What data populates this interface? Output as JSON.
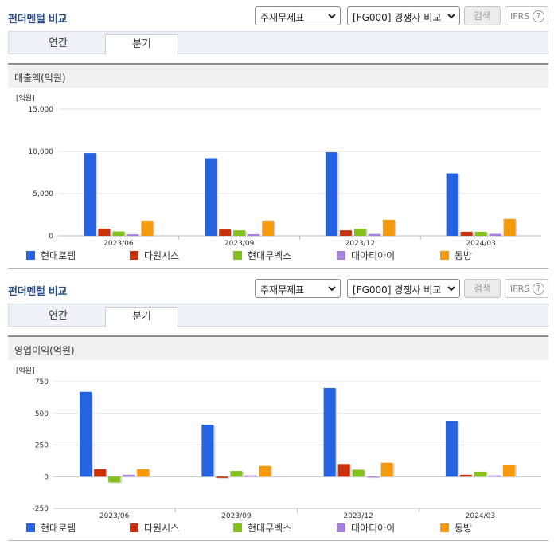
{
  "header": {
    "title": "펀더멘털 비교",
    "select_statement": "주재무제표",
    "select_compare": "[FG000] 경쟁사 비교",
    "search_label": "검색",
    "ifrs_label": "IFRS",
    "help_glyph": "?"
  },
  "tabs": {
    "annual": "연간",
    "quarter": "분기",
    "active": "분기"
  },
  "colors": {
    "title": "#2b4f8a",
    "series": [
      "#2563e0",
      "#c8330e",
      "#84c11f",
      "#a77fdc",
      "#f59a0c"
    ]
  },
  "charts": [
    {
      "metric": "매출액(억원)",
      "chart_data": {
        "type": "bar",
        "unit_label": "[억원]",
        "categories": [
          "2023/06",
          "2023/09",
          "2023/12",
          "2024/03"
        ],
        "ylim": [
          0,
          15000
        ],
        "yticks": [
          0,
          5000,
          10000,
          15000
        ],
        "ytick_labels": [
          "0",
          "5,000",
          "10,000",
          "15,000"
        ],
        "grid": true,
        "legend_position": "bottom",
        "series": [
          {
            "name": "현대로템",
            "values": [
              9800,
              9200,
              9900,
              7400
            ]
          },
          {
            "name": "다원시스",
            "values": [
              850,
              750,
              650,
              480
            ]
          },
          {
            "name": "현대무벡스",
            "values": [
              520,
              650,
              850,
              480
            ]
          },
          {
            "name": "대아티아이",
            "values": [
              180,
              200,
              220,
              230
            ]
          },
          {
            "name": "동방",
            "values": [
              1800,
              1800,
              1900,
              2000
            ]
          }
        ]
      }
    },
    {
      "metric": "영업이익(억원)",
      "chart_data": {
        "type": "bar",
        "unit_label": "[억원]",
        "categories": [
          "2023/06",
          "2023/09",
          "2023/12",
          "2024/03"
        ],
        "ylim": [
          -250,
          750
        ],
        "yticks": [
          -250,
          0,
          250,
          500,
          750
        ],
        "ytick_labels": [
          "-250",
          "0",
          "250",
          "500",
          "750"
        ],
        "grid": true,
        "legend_position": "bottom",
        "series": [
          {
            "name": "현대로템",
            "values": [
              670,
              410,
              700,
              440
            ]
          },
          {
            "name": "다원시스",
            "values": [
              60,
              -10,
              100,
              15
            ]
          },
          {
            "name": "현대무벡스",
            "values": [
              -45,
              45,
              55,
              40
            ]
          },
          {
            "name": "대아티아이",
            "values": [
              15,
              10,
              0,
              10
            ]
          },
          {
            "name": "동방",
            "values": [
              60,
              85,
              110,
              90
            ]
          }
        ]
      }
    }
  ]
}
